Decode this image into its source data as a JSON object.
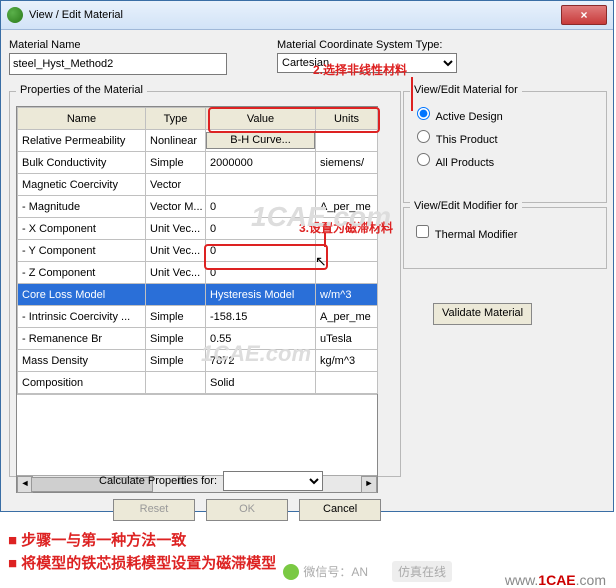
{
  "title": "View / Edit Material",
  "labels": {
    "materialName": "Material Name",
    "coordType": "Material Coordinate System Type:",
    "properties": "Properties of the Material",
    "viewEditMatFor": "View/Edit Material for",
    "viewEditModFor": "View/Edit Modifier for",
    "calcProps": "Calculate Properties for:"
  },
  "values": {
    "materialName": "steel_Hyst_Method2",
    "coordType": "Cartesian"
  },
  "columns": [
    "Name",
    "Type",
    "Value",
    "Units"
  ],
  "rows": [
    {
      "name": "Relative Permeability",
      "type": "Nonlinear",
      "value": "B-H Curve...",
      "units": "",
      "btn": true
    },
    {
      "name": "Bulk Conductivity",
      "type": "Simple",
      "value": "2000000",
      "units": "siemens/"
    },
    {
      "name": "Magnetic Coercivity",
      "type": "Vector",
      "value": "",
      "units": ""
    },
    {
      "name": "- Magnitude",
      "type": "Vector M...",
      "value": "0",
      "units": "A_per_me"
    },
    {
      "name": "- X Component",
      "type": "Unit Vec...",
      "value": "0",
      "units": ""
    },
    {
      "name": "- Y Component",
      "type": "Unit Vec...",
      "value": "0",
      "units": ""
    },
    {
      "name": "- Z Component",
      "type": "Unit Vec...",
      "value": "0",
      "units": ""
    },
    {
      "name": "Core Loss Model",
      "type": "",
      "value": "Hysteresis Model",
      "units": "w/m^3",
      "sel": true
    },
    {
      "name": "- Intrinsic Coercivity ...",
      "type": "Simple",
      "value": "-158.15",
      "units": "A_per_me"
    },
    {
      "name": "- Remanence Br",
      "type": "Simple",
      "value": "0.55",
      "units": "uTesla"
    },
    {
      "name": "Mass Density",
      "type": "Simple",
      "value": "7872",
      "units": "kg/m^3"
    },
    {
      "name": "Composition",
      "type": "",
      "value": "Solid",
      "units": ""
    }
  ],
  "radios": {
    "active": "Active Design",
    "product": "This Product",
    "all": "All Products",
    "thermal": "Thermal Modifier"
  },
  "buttons": {
    "validate": "Validate Material",
    "reset": "Reset",
    "ok": "OK",
    "cancel": "Cancel"
  },
  "annotations": {
    "a2": "2.选择非线性材料",
    "a3": "3.设置为磁滞材料"
  },
  "bullets": [
    "步骤一与第一种方法一致",
    "将模型的铁芯损耗模型设置为磁滞模型"
  ],
  "watermark1": "1CAE.com",
  "credit_pre": "www.",
  "credit_mid": "1CAE",
  "credit_suf": ".com",
  "wechat": "微信号：AN",
  "wechat2": "仿真在线",
  "colors": {
    "accent": "#d22",
    "sel": "#2a6fd8"
  }
}
